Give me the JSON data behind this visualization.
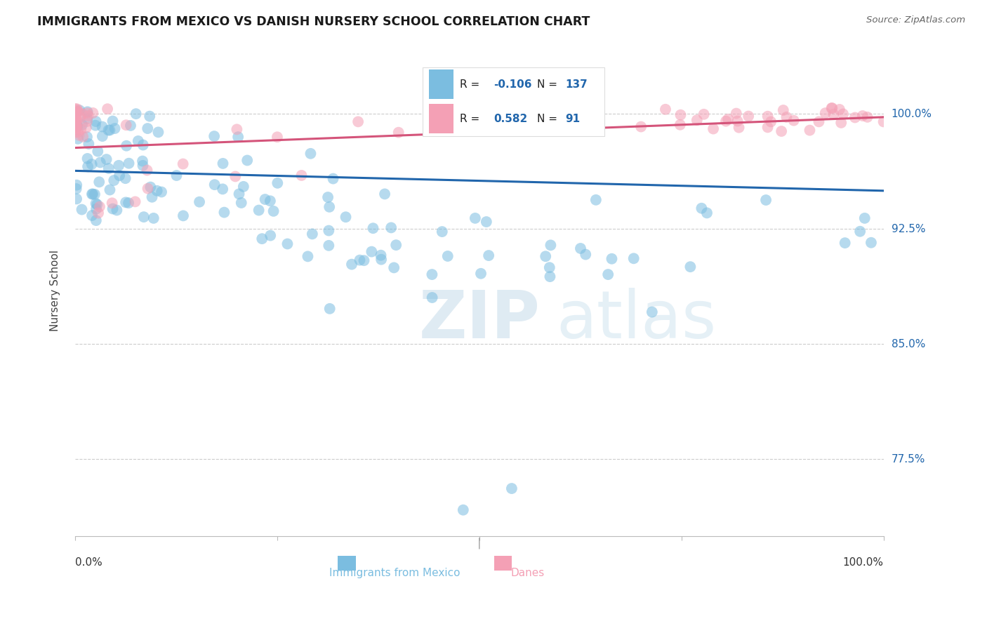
{
  "title": "IMMIGRANTS FROM MEXICO VS DANISH NURSERY SCHOOL CORRELATION CHART",
  "source": "Source: ZipAtlas.com",
  "ylabel": "Nursery School",
  "ytick_labels": [
    "100.0%",
    "92.5%",
    "85.0%",
    "77.5%"
  ],
  "ytick_values": [
    1.0,
    0.925,
    0.85,
    0.775
  ],
  "xlim": [
    0.0,
    1.0
  ],
  "ylim": [
    0.725,
    1.045
  ],
  "legend_label_blue": "Immigrants from Mexico",
  "legend_label_pink": "Danes",
  "r_blue": "-0.106",
  "n_blue": "137",
  "r_pink": "0.582",
  "n_pink": "91",
  "blue_color": "#7bbde0",
  "pink_color": "#f4a0b5",
  "blue_line_color": "#2166ac",
  "pink_line_color": "#d4547a",
  "blue_trendline_x0": 0.0,
  "blue_trendline_x1": 1.0,
  "blue_trendline_y0": 0.963,
  "blue_trendline_y1": 0.95,
  "pink_trendline_x0": 0.0,
  "pink_trendline_x1": 1.0,
  "pink_trendline_y0": 0.978,
  "pink_trendline_y1": 0.998
}
